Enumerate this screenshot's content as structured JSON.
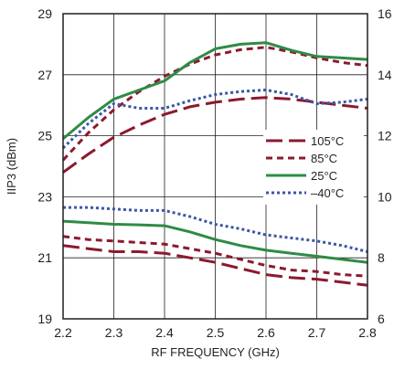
{
  "chart_data": {
    "type": "line",
    "xlabel": "RF FREQUENCY (GHz)",
    "ylabel": "IIP3 (dBm)",
    "xlim": [
      2.2,
      2.8
    ],
    "ylim": [
      19,
      29
    ],
    "y2lim": [
      6,
      16
    ],
    "x_ticks": [
      "2.2",
      "2.3",
      "2.4",
      "2.5",
      "2.6",
      "2.7",
      "2.8"
    ],
    "y_ticks": [
      "19",
      "21",
      "23",
      "25",
      "27",
      "29"
    ],
    "y2_ticks": [
      "6",
      "8",
      "10",
      "12",
      "14",
      "16"
    ],
    "grid": true,
    "legend_position": "right",
    "x": [
      2.2,
      2.25,
      2.3,
      2.35,
      2.4,
      2.45,
      2.5,
      2.55,
      2.6,
      2.65,
      2.7,
      2.75,
      2.8
    ],
    "series_styles": {
      "105°C": {
        "color": "#8b1a2e",
        "dash": "18 7"
      },
      "85°C": {
        "color": "#8b1a2e",
        "dash": "7 5"
      },
      "25°C": {
        "color": "#2e8b45",
        "dash": ""
      },
      "-40°C": {
        "color": "#3a57a8",
        "dash": "3 3"
      }
    },
    "series": [
      {
        "name": "105°C",
        "axis": "left",
        "values": [
          23.8,
          24.4,
          24.95,
          25.35,
          25.7,
          25.95,
          26.1,
          26.2,
          26.25,
          26.2,
          26.1,
          26.0,
          25.9
        ]
      },
      {
        "name": "85°C",
        "axis": "left",
        "values": [
          24.2,
          25.1,
          25.85,
          26.45,
          26.95,
          27.35,
          27.65,
          27.82,
          27.9,
          27.75,
          27.55,
          27.4,
          27.3
        ]
      },
      {
        "name": "25°C",
        "axis": "left",
        "values": [
          24.9,
          25.6,
          26.2,
          26.5,
          26.8,
          27.4,
          27.85,
          28.0,
          28.05,
          27.8,
          27.6,
          27.55,
          27.5
        ]
      },
      {
        "name": "-40°C",
        "axis": "left",
        "values": [
          24.6,
          25.4,
          26.05,
          25.9,
          25.9,
          26.15,
          26.35,
          26.45,
          26.5,
          26.35,
          26.05,
          26.1,
          26.2
        ]
      },
      {
        "name": "105°C",
        "axis": "right",
        "values": [
          8.4,
          8.3,
          8.2,
          8.2,
          8.15,
          8.0,
          7.85,
          7.65,
          7.45,
          7.35,
          7.3,
          7.2,
          7.1
        ]
      },
      {
        "name": "85°C",
        "axis": "right",
        "values": [
          8.7,
          8.6,
          8.55,
          8.5,
          8.45,
          8.3,
          8.15,
          7.95,
          7.75,
          7.6,
          7.55,
          7.45,
          7.4
        ]
      },
      {
        "name": "25°C",
        "axis": "right",
        "values": [
          9.2,
          9.15,
          9.1,
          9.08,
          9.05,
          8.85,
          8.6,
          8.4,
          8.25,
          8.15,
          8.05,
          7.95,
          7.85
        ]
      },
      {
        "name": "-40°C",
        "axis": "right",
        "values": [
          9.65,
          9.65,
          9.6,
          9.55,
          9.55,
          9.35,
          9.1,
          8.95,
          8.75,
          8.65,
          8.55,
          8.4,
          8.2
        ]
      }
    ],
    "legend": [
      {
        "label": "105°C",
        "color": "#8b1a2e",
        "dash": "18 7"
      },
      {
        "label": "85°C",
        "color": "#8b1a2e",
        "dash": "7 5"
      },
      {
        "label": "25°C",
        "color": "#2e8b45",
        "dash": ""
      },
      {
        "label": "–40°C",
        "color": "#3a57a8",
        "dash": "3 3"
      }
    ]
  }
}
